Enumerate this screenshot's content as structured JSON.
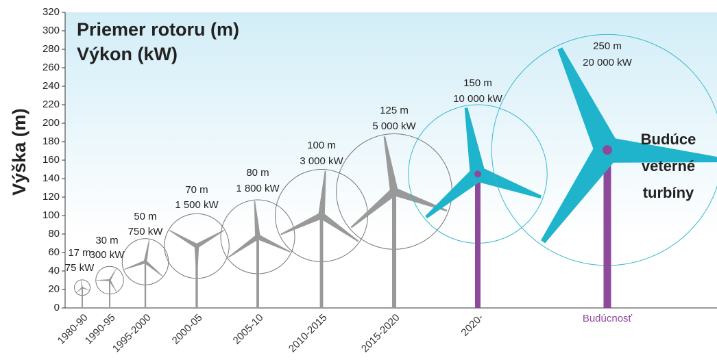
{
  "chart_data": {
    "type": "turbine",
    "title": "Priemer rotoru (m)",
    "subtitle": "Výkon (kW)",
    "y_label": "Výška (m)",
    "annotation": [
      "Budúce",
      "veterné",
      "turbíny"
    ],
    "categories": [
      "1980-90",
      "1990-95",
      "1995-2000",
      "2000-05",
      "2005-10",
      "2010-2015",
      "2015-2020",
      "2020-",
      "Budúcnosť"
    ],
    "values": [
      22,
      30,
      50,
      67,
      77,
      100,
      126,
      145,
      171
    ],
    "diameters": [
      17,
      30,
      50,
      70,
      80,
      100,
      125,
      150,
      250
    ],
    "diameter_labels": [
      "17 m",
      "30 m",
      "50 m",
      "70 m",
      "80 m",
      "100 m",
      "125 m",
      "150 m",
      "250 m"
    ],
    "power": [
      75,
      300,
      750,
      1500,
      1800,
      3000,
      5000,
      10000,
      20000
    ],
    "power_labels": [
      "75 kW",
      "300 kW",
      "750 kW",
      "1 500 kW",
      "1 800 kW",
      "3 000 kW",
      "5 000 kW",
      "10 000 kW",
      "20 000 kW"
    ],
    "tower_colors": [
      "#999999",
      "#999999",
      "#999999",
      "#999999",
      "#999999",
      "#999999",
      "#999999",
      "#8e4a9a",
      "#8e4a9a"
    ],
    "blade_colors": [
      "#999999",
      "#999999",
      "#999999",
      "#999999",
      "#999999",
      "#999999",
      "#999999",
      "#1fb3cc",
      "#1fb3cc"
    ],
    "circle_colors": [
      "#777777",
      "#777777",
      "#777777",
      "#777777",
      "#777777",
      "#777777",
      "#777777",
      "#3bb8cf",
      "#3bb8cf"
    ],
    "label_colors": [
      "#333333",
      "#333333",
      "#333333",
      "#333333",
      "#333333",
      "#333333",
      "#333333",
      "#333333",
      "#8e4a9a"
    ],
    "text_color": "#333333",
    "ylim": [
      0,
      320
    ],
    "yticks": [
      0,
      20,
      40,
      60,
      80,
      100,
      120,
      140,
      160,
      180,
      200,
      220,
      240,
      260,
      280,
      300,
      320
    ]
  }
}
